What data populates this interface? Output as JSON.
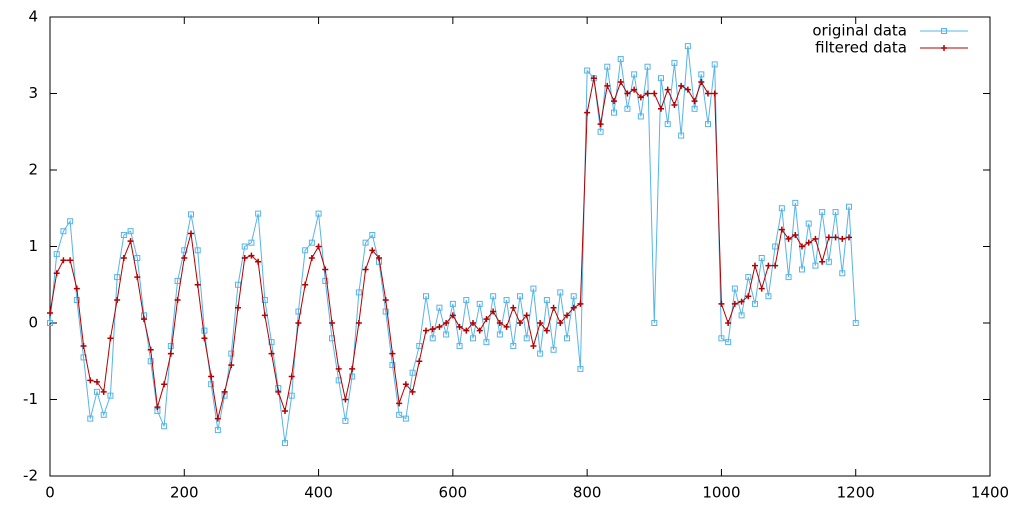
{
  "chart_data": {
    "type": "line",
    "x": [
      0,
      10,
      20,
      30,
      40,
      50,
      60,
      70,
      80,
      90,
      100,
      110,
      120,
      130,
      140,
      150,
      160,
      170,
      180,
      190,
      200,
      210,
      220,
      230,
      240,
      250,
      260,
      270,
      280,
      290,
      300,
      310,
      320,
      330,
      340,
      350,
      360,
      370,
      380,
      390,
      400,
      410,
      420,
      430,
      440,
      450,
      460,
      470,
      480,
      490,
      500,
      510,
      520,
      530,
      540,
      550,
      560,
      570,
      580,
      590,
      600,
      610,
      620,
      630,
      640,
      650,
      660,
      670,
      680,
      690,
      700,
      710,
      720,
      730,
      740,
      750,
      760,
      770,
      780,
      790,
      800,
      810,
      820,
      830,
      840,
      850,
      860,
      870,
      880,
      890,
      900,
      910,
      920,
      930,
      940,
      950,
      960,
      970,
      980,
      990,
      1000,
      1010,
      1020,
      1030,
      1040,
      1050,
      1060,
      1070,
      1080,
      1090,
      1100,
      1110,
      1120,
      1130,
      1140,
      1150,
      1160,
      1170,
      1180,
      1190,
      1200
    ],
    "series": [
      {
        "name": "original data",
        "color": "#56b4e9",
        "marker": "square",
        "values": [
          0.0,
          0.9,
          1.2,
          1.33,
          0.3,
          -0.45,
          -1.25,
          -0.9,
          -1.2,
          -0.95,
          0.6,
          1.15,
          1.2,
          0.85,
          0.1,
          -0.5,
          -1.15,
          -1.35,
          -0.3,
          0.55,
          0.95,
          1.42,
          0.95,
          -0.1,
          -0.8,
          -1.4,
          -0.95,
          -0.4,
          0.5,
          1.0,
          1.05,
          1.43,
          0.3,
          -0.25,
          -0.85,
          -1.57,
          -0.95,
          0.15,
          0.95,
          1.05,
          1.43,
          0.55,
          -0.2,
          -0.75,
          -1.28,
          -0.7,
          0.4,
          1.05,
          1.15,
          0.8,
          0.15,
          -0.55,
          -1.2,
          -1.25,
          -0.65,
          -0.3,
          0.35,
          -0.2,
          0.2,
          -0.15,
          0.25,
          -0.3,
          0.3,
          -0.2,
          0.25,
          -0.25,
          0.35,
          -0.15,
          0.3,
          -0.3,
          0.35,
          -0.2,
          0.45,
          -0.4,
          0.3,
          -0.35,
          0.4,
          -0.2,
          0.35,
          -0.6,
          3.3,
          3.2,
          2.5,
          3.35,
          2.75,
          3.45,
          2.8,
          3.25,
          2.7,
          3.35,
          0.0,
          3.2,
          2.6,
          3.4,
          2.45,
          3.62,
          2.8,
          3.25,
          2.6,
          3.38,
          -0.2,
          -0.25,
          0.45,
          0.1,
          0.6,
          0.25,
          0.85,
          0.35,
          1.0,
          1.5,
          0.6,
          1.57,
          0.7,
          1.3,
          0.75,
          1.45,
          0.8,
          1.45,
          0.65,
          1.52,
          0.0
        ]
      },
      {
        "name": "filtered data",
        "color": "#b30000",
        "marker": "plus",
        "values": [
          0.13,
          0.65,
          0.82,
          0.82,
          0.45,
          -0.3,
          -0.75,
          -0.77,
          -0.9,
          -0.2,
          0.3,
          0.85,
          1.07,
          0.6,
          0.05,
          -0.35,
          -1.1,
          -0.8,
          -0.4,
          0.3,
          0.85,
          1.17,
          0.5,
          -0.2,
          -0.7,
          -1.25,
          -0.9,
          -0.55,
          0.2,
          0.85,
          0.88,
          0.8,
          0.1,
          -0.4,
          -0.9,
          -1.15,
          -0.7,
          0.0,
          0.5,
          0.85,
          1.0,
          0.7,
          0.0,
          -0.6,
          -1.0,
          -0.6,
          0.0,
          0.7,
          0.95,
          0.85,
          0.3,
          -0.4,
          -1.05,
          -0.8,
          -0.9,
          -0.5,
          -0.1,
          -0.08,
          -0.05,
          0.0,
          0.1,
          -0.05,
          -0.1,
          0.0,
          -0.1,
          0.05,
          0.15,
          0.0,
          -0.05,
          0.2,
          0.0,
          0.1,
          -0.3,
          0.0,
          -0.1,
          0.2,
          0.0,
          0.1,
          0.2,
          0.25,
          2.75,
          3.2,
          2.6,
          3.1,
          2.9,
          3.15,
          3.0,
          3.05,
          2.95,
          3.0,
          3.0,
          2.8,
          3.05,
          2.85,
          3.1,
          3.05,
          2.9,
          3.15,
          3.0,
          3.0,
          0.25,
          0.0,
          0.25,
          0.28,
          0.35,
          0.75,
          0.45,
          0.75,
          0.75,
          1.22,
          1.1,
          1.15,
          1.0,
          1.05,
          1.1,
          0.8,
          1.12,
          1.12,
          1.1,
          1.12,
          null
        ]
      }
    ],
    "xlim": [
      0,
      1400
    ],
    "ylim": [
      -2,
      4
    ],
    "xticks": [
      0,
      200,
      400,
      600,
      800,
      1000,
      1200,
      1400
    ],
    "yticks": [
      -2,
      -1,
      0,
      1,
      2,
      3,
      4
    ],
    "grid": false,
    "legend": "top-right"
  }
}
